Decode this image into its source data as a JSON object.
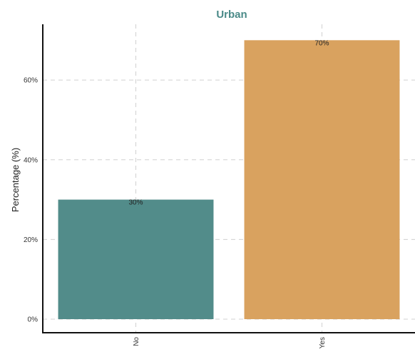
{
  "chart_data": {
    "type": "bar",
    "title": "Urban",
    "xlabel": "",
    "ylabel": "Percentage (%)",
    "categories": [
      "No",
      "Yes"
    ],
    "values": [
      30,
      70
    ],
    "value_labels": [
      "30%",
      "70%"
    ],
    "bar_colors": [
      "#528c8a",
      "#d9a25f"
    ],
    "title_color": "#4a8a88",
    "ylim": [
      0,
      74
    ],
    "yticks": [
      0,
      20,
      40,
      60
    ],
    "ytick_labels": [
      "0%",
      "20%",
      "40%",
      "60%"
    ],
    "grid": true,
    "legend": "none"
  }
}
